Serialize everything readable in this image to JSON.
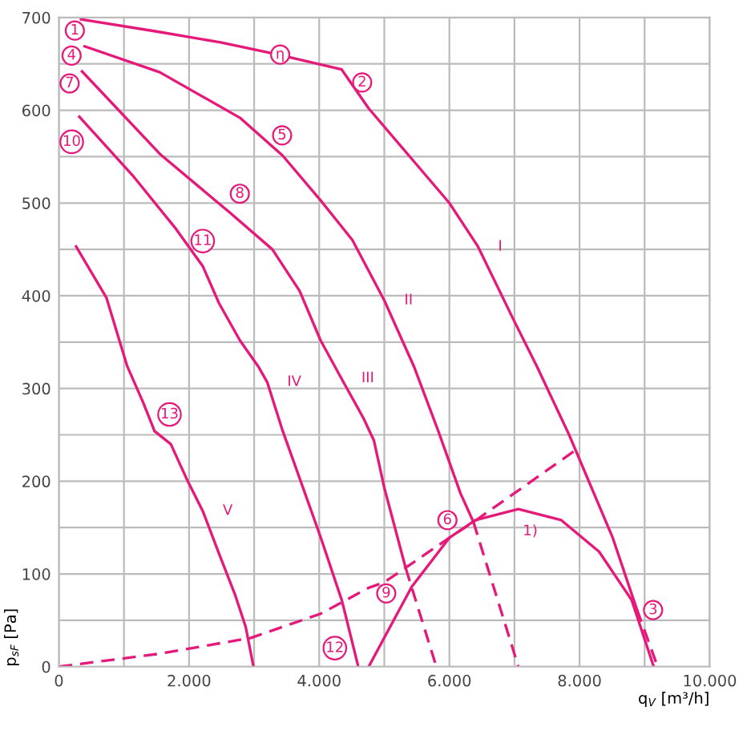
{
  "chart_data": {
    "type": "line",
    "xlabel": "q$_{V}$ [m³/h]",
    "ylabel": "p$_{sF}$ [Pa]",
    "xlim": [
      0,
      10000
    ],
    "ylim": [
      0,
      700
    ],
    "xticks": [
      0,
      {
        "value": 1000,
        "label": null
      },
      {
        "value": 2000,
        "label": "2.000"
      },
      {
        "value": 3000,
        "label": null
      },
      {
        "value": 4000,
        "label": "4.000"
      },
      {
        "value": 5000,
        "label": null
      },
      {
        "value": 6000,
        "label": "6.000"
      },
      {
        "value": 7000,
        "label": null
      },
      {
        "value": 8000,
        "label": "8.000"
      },
      {
        "value": 9000,
        "label": null
      },
      {
        "value": 10000,
        "label": "10.000"
      }
    ],
    "yticks": [
      0,
      {
        "value": 50,
        "label": null
      },
      100,
      {
        "value": 150,
        "label": null
      },
      200,
      {
        "value": 250,
        "label": null
      },
      300,
      {
        "value": 350,
        "label": null
      },
      400,
      {
        "value": 450,
        "label": null
      },
      500,
      {
        "value": 550,
        "label": null
      },
      600,
      {
        "value": 650,
        "label": null
      },
      700
    ],
    "grid": true,
    "legend": false,
    "marker": "none",
    "series": [
      {
        "name": "I",
        "color": "#e5197a",
        "line_style": "solid",
        "x": [
          340,
          1500,
          2500,
          3370,
          4345,
          4760,
          6000,
          6440,
          6980,
          7350,
          7840,
          8510,
          8880
        ],
        "values": [
          698,
          685,
          673,
          660,
          644,
          602,
          500,
          453,
          375,
          323,
          250,
          139,
          62
        ]
      },
      {
        "color": "#e5197a",
        "line_style": "dashed",
        "x": [
          8880,
          9200
        ],
        "values": [
          62,
          0
        ]
      },
      {
        "name": "II",
        "color": "#e5197a",
        "line_style": "solid",
        "x": [
          395,
          1550,
          2780,
          3440,
          4020,
          4510,
          5000,
          5460,
          5830,
          6170,
          6370
        ],
        "values": [
          669,
          641,
          592,
          551,
          503,
          460,
          395,
          323,
          254,
          187,
          156
        ]
      },
      {
        "color": "#e5197a",
        "line_style": "dashed",
        "x": [
          6370,
          7060
        ],
        "values": [
          156,
          0
        ]
      },
      {
        "name": "III",
        "color": "#e5197a",
        "line_style": "solid",
        "x": [
          355,
          1550,
          2620,
          3280,
          3700,
          4020,
          4340,
          4680,
          4840,
          5000,
          5330
        ],
        "values": [
          642,
          553,
          490,
          450,
          405,
          352,
          311,
          268,
          244,
          193,
          106
        ]
      },
      {
        "color": "#e5197a",
        "line_style": "dashed",
        "x": [
          5330,
          5800
        ],
        "values": [
          106,
          0
        ]
      },
      {
        "name": "IV",
        "color": "#e5197a",
        "line_style": "solid",
        "x": [
          314,
          1130,
          1800,
          2210,
          2460,
          2780,
          3070,
          3200,
          3440,
          3700,
          4020,
          4350,
          4600
        ],
        "values": [
          593,
          530,
          472,
          432,
          392,
          352,
          323,
          307,
          254,
          203,
          140,
          71,
          0
        ]
      },
      {
        "name": "V",
        "color": "#e5197a",
        "line_style": "solid",
        "x": [
          265,
          730,
          1050,
          1300,
          1470,
          1720,
          1960,
          2210,
          2460,
          2710,
          2870,
          2990
        ],
        "values": [
          453,
          398,
          324,
          284,
          254,
          240,
          203,
          168,
          122,
          77,
          43,
          0
        ]
      },
      {
        "color": "#e5197a",
        "line_style": "dashed",
        "x": [
          0,
          1550,
          2950,
          4020,
          4760,
          5000,
          6000,
          6370,
          7970
        ],
        "values": [
          0,
          14,
          31,
          57,
          85,
          91,
          139,
          156,
          235
        ]
      },
      {
        "name": "1)",
        "color": "#e5197a",
        "line_style": "solid",
        "x": [
          4760,
          5420,
          6000,
          6400,
          7060,
          7720,
          8300,
          8800,
          9140
        ],
        "values": [
          0,
          86,
          139,
          158,
          170,
          158,
          124,
          72,
          0
        ]
      }
    ],
    "annotations": [
      {
        "text": "1",
        "x": 245,
        "y": 686
      },
      {
        "text": "4",
        "x": 195,
        "y": 659
      },
      {
        "text": "7",
        "x": 165,
        "y": 629
      },
      {
        "text": "10",
        "x": 197,
        "y": 566
      },
      {
        "text": "η",
        "x": 3400,
        "y": 660
      },
      {
        "text": "2",
        "x": 4660,
        "y": 630
      },
      {
        "text": "5",
        "x": 3430,
        "y": 573
      },
      {
        "text": "8",
        "x": 2780,
        "y": 510
      },
      {
        "text": "11",
        "x": 2210,
        "y": 459
      },
      {
        "text": "13",
        "x": 1700,
        "y": 272
      },
      {
        "text": "6",
        "x": 5970,
        "y": 158
      },
      {
        "text": "9",
        "x": 5030,
        "y": 79
      },
      {
        "text": "12",
        "x": 4240,
        "y": 20
      },
      {
        "text": "3",
        "x": 9130,
        "y": 61
      }
    ]
  }
}
